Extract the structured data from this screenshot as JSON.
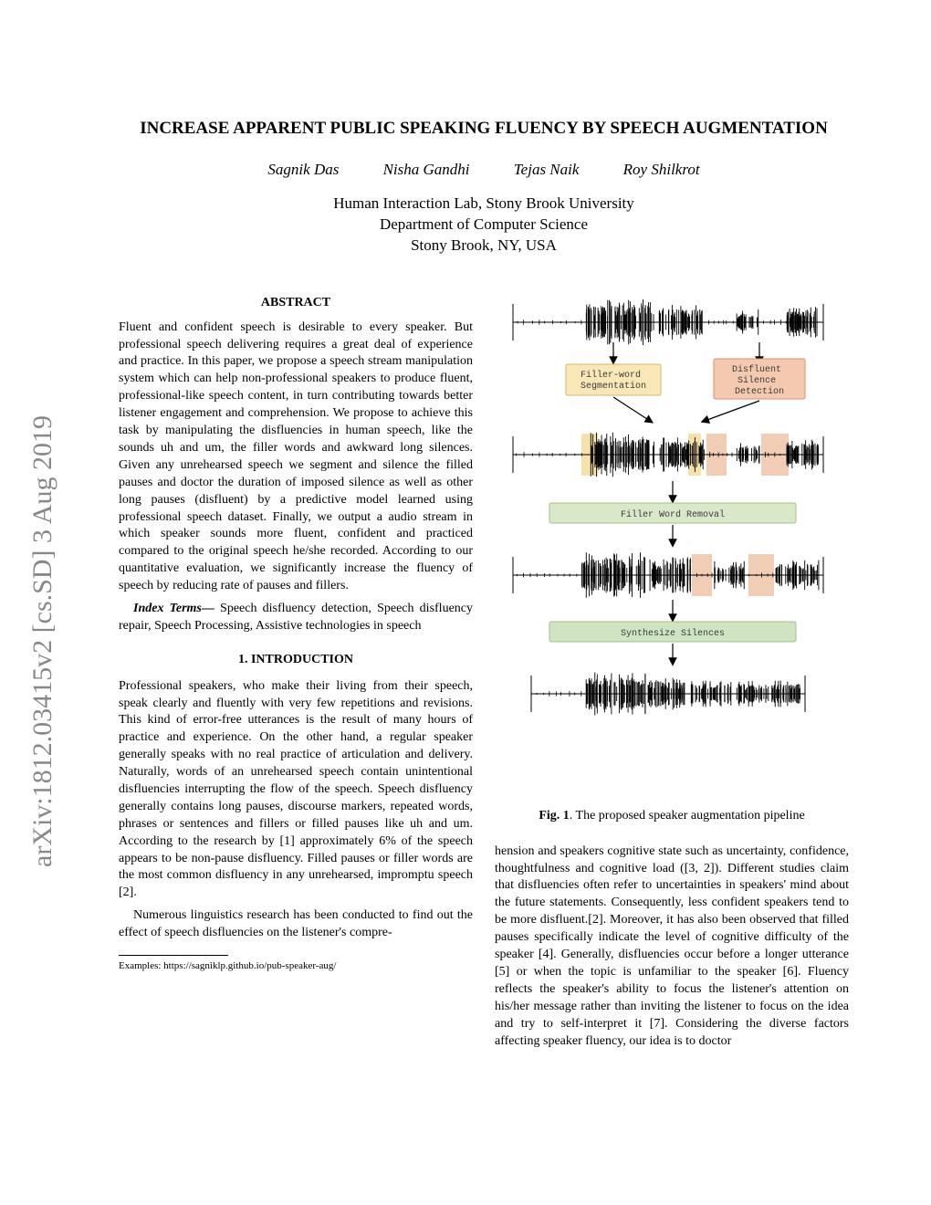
{
  "arxiv": "arXiv:1812.03415v2  [cs.SD]  3 Aug 2019",
  "title": "INCREASE APPARENT PUBLIC SPEAKING FLUENCY BY SPEECH AUGMENTATION",
  "authors": [
    "Sagnik Das",
    "Nisha Gandhi",
    "Tejas Naik",
    "Roy Shilkrot"
  ],
  "affiliation_lines": [
    "Human Interaction Lab, Stony Brook University",
    "Department of Computer Science",
    "Stony Brook, NY, USA"
  ],
  "abstract_heading": "ABSTRACT",
  "abstract_body": "Fluent and confident speech is desirable to every speaker. But professional speech delivering requires a great deal of experience and practice. In this paper, we propose a speech stream manipulation system which can help non-professional speakers to produce fluent, professional-like speech content, in turn contributing towards better listener engagement and comprehension. We propose to achieve this task by manipulating the disfluencies in human speech, like the sounds uh and um, the filler words and awkward long silences. Given any unrehearsed speech we segment and silence the filled pauses and doctor the duration of imposed silence as well as other long pauses (disfluent) by a predictive model learned using professional speech dataset. Finally, we output a audio stream in which speaker sounds more fluent, confident and practiced compared to the original speech he/she recorded. According to our quantitative evaluation, we significantly increase the fluency of speech by reducing rate of pauses and fillers.",
  "index_terms_label": "Index Terms—",
  "index_terms_body": " Speech disfluency detection, Speech disfluency repair, Speech Processing, Assistive technologies in speech",
  "intro_heading": "1. INTRODUCTION",
  "intro_p1": "Professional speakers, who make their living from their speech, speak clearly and fluently with very few repetitions and revisions. This kind of error-free utterances is the result of many hours of practice and experience. On the other hand, a regular speaker generally speaks with no real practice of articulation and delivery. Naturally, words of an unrehearsed speech contain unintentional disfluencies interrupting the flow of the speech. Speech disfluency generally contains long pauses, discourse markers, repeated words, phrases or sentences and fillers or filled pauses like uh and um. According to the research by [1] approximately 6% of the speech appears to be non-pause disfluency. Filled pauses or filler words are the most common disfluency in any unrehearsed, impromptu speech [2].",
  "intro_p2": "Numerous linguistics research has been conducted to find out the effect of speech disfluencies on the listener's compre-",
  "footnote": "Examples: https://sagniklp.github.io/pub-speaker-aug/",
  "fig_caption_label": "Fig. 1",
  "fig_caption_text": ". The proposed speaker augmentation pipeline",
  "col2_body": "hension and speakers cognitive state such as uncertainty, confidence, thoughtfulness and cognitive load ([3, 2]). Different studies claim that disfluencies often refer to uncertainties in speakers' mind about the future statements. Consequently, less confident speakers tend to be more disfluent.[2]. Moreover, it has also been observed that filled pauses specifically indicate the level of cognitive difficulty of the speaker [4]. Generally, disfluencies occur before a longer utterance [5] or when the topic is unfamiliar to the speaker [6]. Fluency reflects the speaker's ability to focus the listener's attention on his/her message rather than inviting the listener to focus on the idea and try to self-interpret it [7]. Considering the diverse factors affecting speaker fluency, our idea is to doctor",
  "figure": {
    "labels": {
      "filler_seg": "Filler-word\nSegmentation",
      "silence_det": "Disfluent\nSilence\nDetection",
      "filler_rem": "Filler Word Removal",
      "synth_sil": "Synthesize Silences"
    },
    "colors": {
      "filler_box_fill": "#f9e7b8",
      "filler_box_stroke": "#d4b76a",
      "silence_box_fill": "#f5c9b0",
      "silence_box_stroke": "#d89070",
      "rem_box_fill": "#d8e8c8",
      "rem_box_stroke": "#a8c088",
      "synth_box_fill": "#d0e4c4",
      "synth_box_stroke": "#a0c090",
      "highlight_yellow": "#f5dd9a",
      "highlight_orange": "#f0c4a8",
      "waveform": "#000000",
      "arrow": "#000000",
      "text": "#3a3a3a"
    }
  }
}
